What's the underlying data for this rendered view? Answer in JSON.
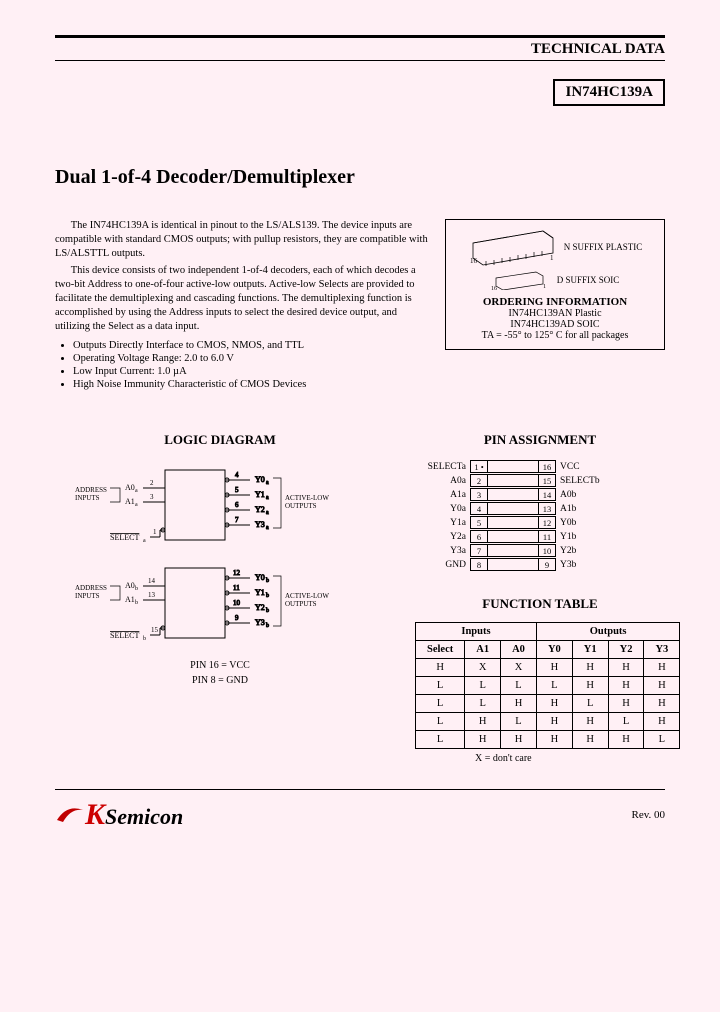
{
  "header": "TECHNICAL DATA",
  "partNumber": "IN74HC139A",
  "title": "Dual 1-of-4 Decoder/Demultiplexer",
  "desc": {
    "p1": "The IN74HC139A is identical in pinout to the LS/ALS139. The device inputs are compatible with standard CMOS outputs; with pullup resistors, they are compatible with LS/ALSTTL outputs.",
    "p2": "This device consists of two independent 1-of-4 decoders, each of which decodes a two-bit Address to one-of-four active-low outputs. Active-low Selects are provided to facilitate the demultiplexing and cascading functions. The demultiplexing function is accomplished by using the Address inputs to select the desired device output, and utilizing the Select as a data input."
  },
  "bullets": [
    "Outputs Directly Interface to CMOS, NMOS, and TTL",
    "Operating Voltage Range: 2.0 to 6.0 V",
    "Low Input Current: 1.0 µA",
    "High Noise Immunity Characteristic of CMOS Devices"
  ],
  "pkg": {
    "nSuffix": "N SUFFIX PLASTIC",
    "dSuffix": "D SUFFIX SOIC",
    "orderTitle": "ORDERING INFORMATION",
    "line1": "IN74HC139AN Plastic",
    "line2": "IN74HC139AD SOIC",
    "temp": "TA = -55° to 125° C for all packages"
  },
  "logicTitle": "LOGIC DIAGRAM",
  "pinTitle": "PIN ASSIGNMENT",
  "pinNote1": "PIN 16 = VCC",
  "pinNote2": "PIN 8 = GND",
  "pins": {
    "left": [
      "SELECTa",
      "A0a",
      "A1a",
      "Y0a",
      "Y1a",
      "Y2a",
      "Y3a",
      "GND"
    ],
    "right": [
      "VCC",
      "SELECTb",
      "A0b",
      "A1b",
      "Y0b",
      "Y1b",
      "Y2b",
      "Y3b"
    ],
    "leftNum": [
      "1",
      "2",
      "3",
      "4",
      "5",
      "6",
      "7",
      "8"
    ],
    "rightNum": [
      "16",
      "15",
      "14",
      "13",
      "12",
      "11",
      "10",
      "9"
    ]
  },
  "funcTitle": "FUNCTION TABLE",
  "func": {
    "groupHeaders": [
      "Inputs",
      "Outputs"
    ],
    "headers": [
      "Select",
      "A1",
      "A0",
      "Y0",
      "Y1",
      "Y2",
      "Y3"
    ],
    "rows": [
      [
        "H",
        "X",
        "X",
        "H",
        "H",
        "H",
        "H"
      ],
      [
        "L",
        "L",
        "L",
        "L",
        "H",
        "H",
        "H"
      ],
      [
        "L",
        "L",
        "H",
        "H",
        "L",
        "H",
        "H"
      ],
      [
        "L",
        "H",
        "L",
        "H",
        "H",
        "L",
        "H"
      ],
      [
        "L",
        "H",
        "H",
        "H",
        "H",
        "H",
        "L"
      ]
    ]
  },
  "footnote": "X = don't care",
  "logo": {
    "brand": "Semicon",
    "accent": "K"
  },
  "rev": "Rev. 00",
  "logic": {
    "addrLabel": "ADDRESS INPUTS",
    "outLabel": "ACTIVE-LOW OUTPUTS",
    "a": {
      "a0": "A0a",
      "a1": "A1a",
      "sel": "SELECTa",
      "y": [
        "Y0a",
        "Y1a",
        "Y2a",
        "Y3a"
      ],
      "pinsIn": [
        "2",
        "3",
        "1"
      ],
      "pinsOut": [
        "4",
        "5",
        "6",
        "7"
      ]
    },
    "b": {
      "a0": "A0b",
      "a1": "A1b",
      "sel": "SELECTb",
      "y": [
        "Y0b",
        "Y1b",
        "Y2b",
        "Y3b"
      ],
      "pinsIn": [
        "14",
        "13",
        "15"
      ],
      "pinsOut": [
        "12",
        "11",
        "10",
        "9"
      ]
    }
  },
  "colors": {
    "accent": "#c00000",
    "bg": "#fff0f5"
  }
}
